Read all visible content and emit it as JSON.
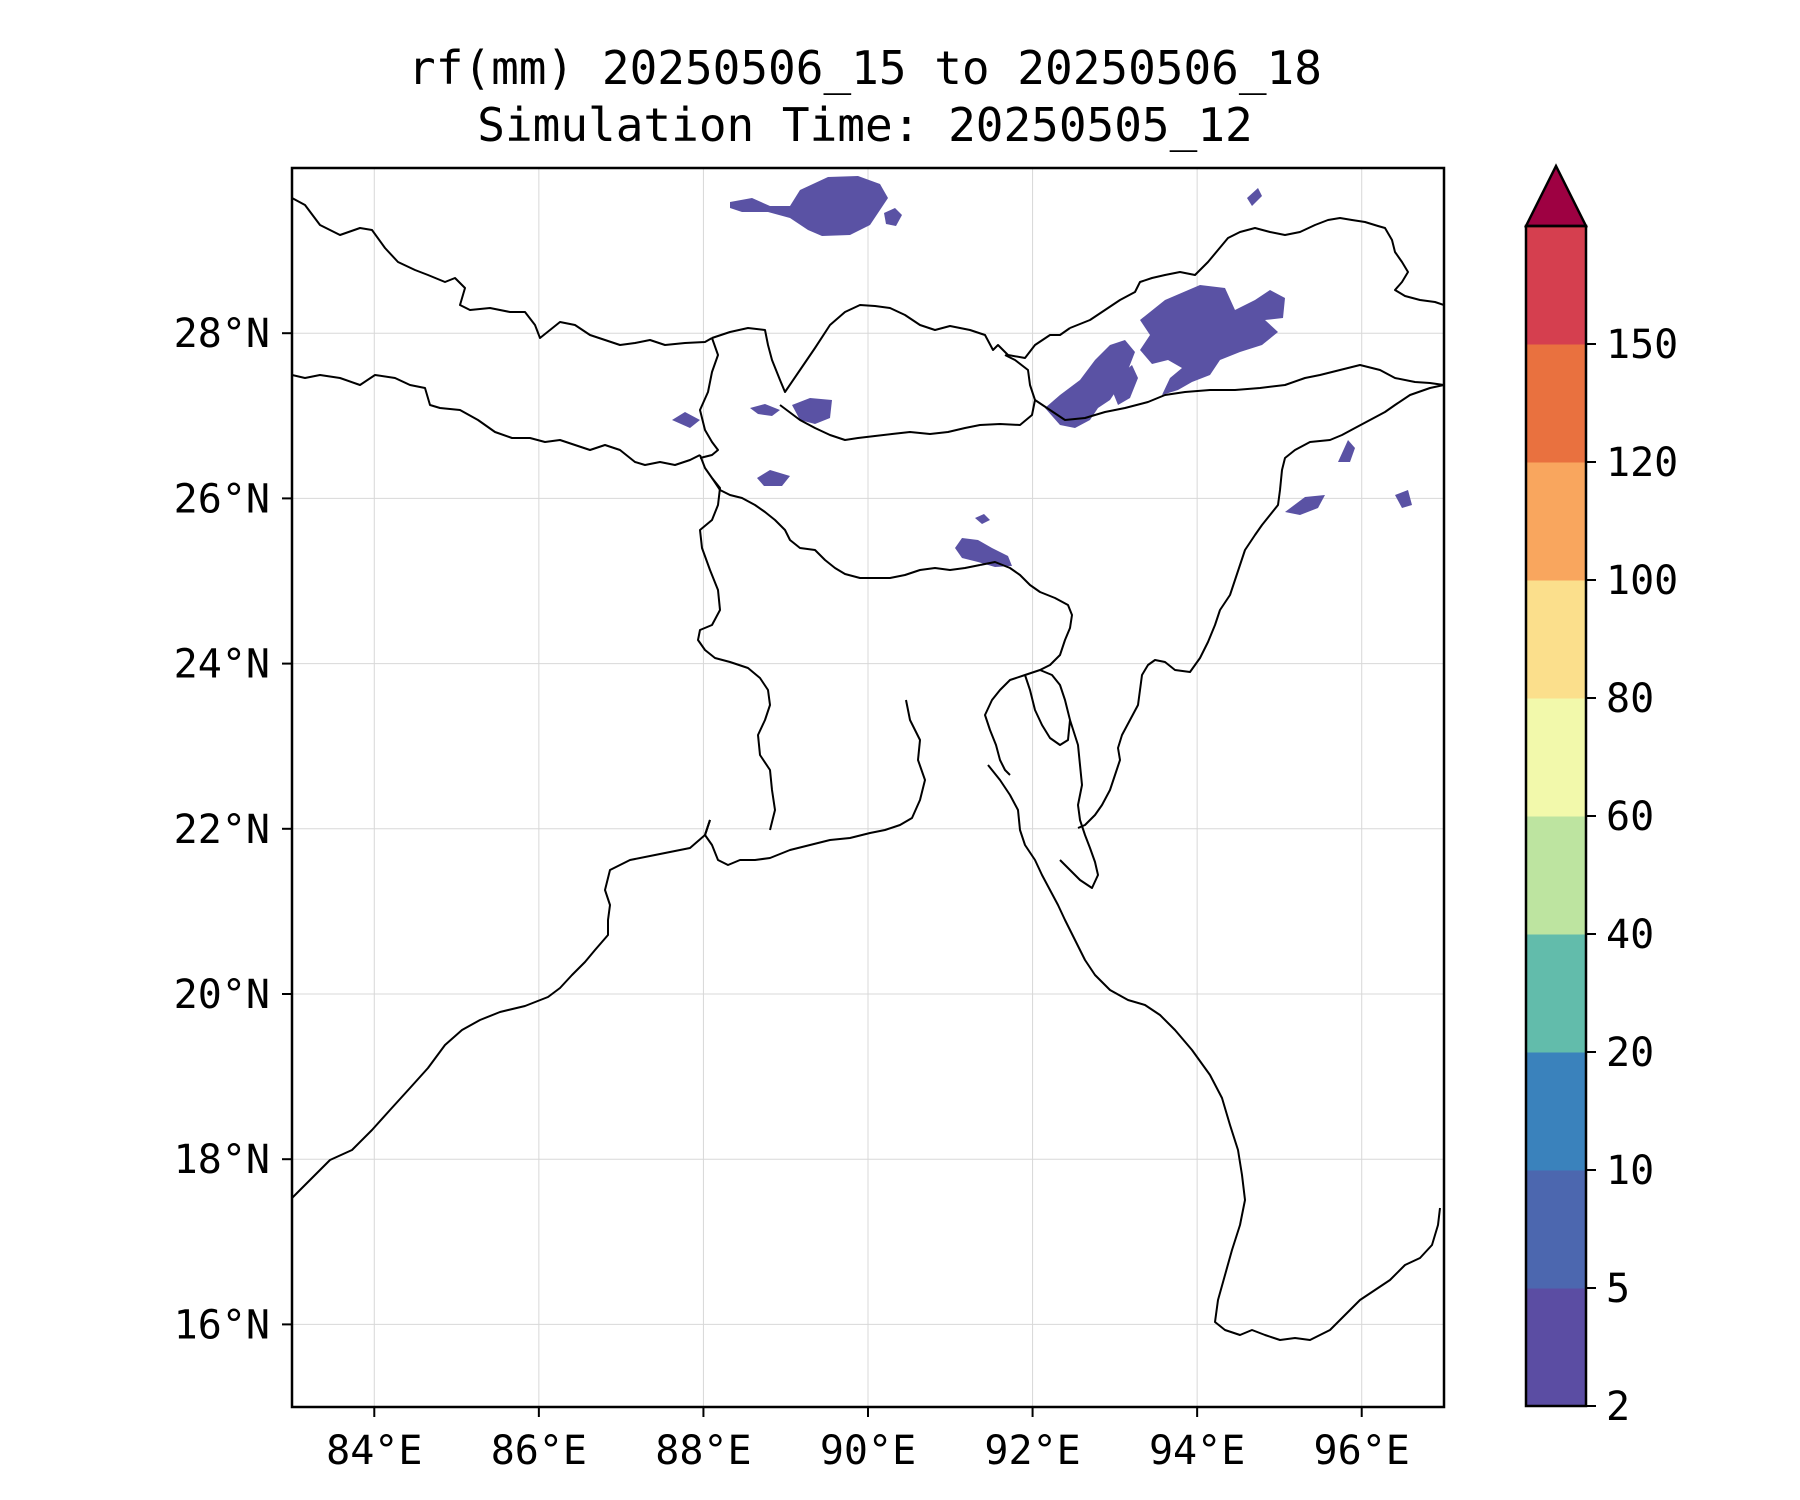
{
  "title": {
    "line1": "rf(mm) 20250506_15 to 20250506_18",
    "line2": "Simulation Time: 20250505_12"
  },
  "map": {
    "lon_range": [
      83.0,
      97.0
    ],
    "lat_range": [
      15.0,
      30.0
    ],
    "x_ticks": [
      84,
      86,
      88,
      90,
      92,
      94,
      96
    ],
    "x_tick_labels": [
      "84°E",
      "86°E",
      "88°E",
      "90°E",
      "92°E",
      "94°E",
      "96°E"
    ],
    "y_ticks": [
      16,
      18,
      20,
      22,
      24,
      26,
      28
    ],
    "y_tick_labels": [
      "16°N",
      "18°N",
      "20°N",
      "22°N",
      "24°N",
      "26°N",
      "28°N"
    ],
    "grid": true,
    "coastline_color": "#000000",
    "rain_color": "#5a52a4"
  },
  "colorbar": {
    "levels": [
      "2",
      "5",
      "10",
      "20",
      "40",
      "60",
      "80",
      "100",
      "120",
      "150"
    ],
    "colors": [
      "#5b4da3",
      "#4c67af",
      "#3a82bc",
      "#62bcab",
      "#bde4a0",
      "#f2f9ab",
      "#fbdf8c",
      "#f9a65e",
      "#e9713f",
      "#d53f4f"
    ],
    "extend_color": "#9e0142",
    "extend": "max"
  }
}
